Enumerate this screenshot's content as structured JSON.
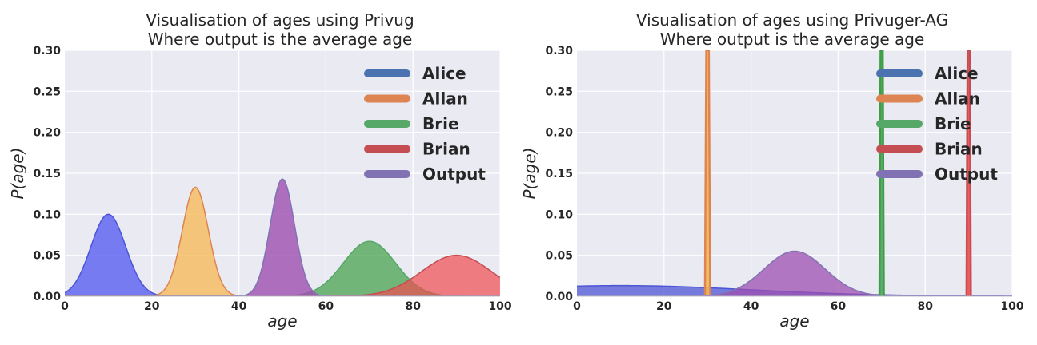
{
  "chart_data": [
    {
      "type": "area",
      "title_lines": [
        "Visualisation of ages using Privug",
        "Where output is the average age"
      ],
      "xlabel": "age",
      "ylabel_parts": [
        "P(",
        "age",
        ")"
      ],
      "xlim": [
        0,
        100
      ],
      "ylim": [
        0,
        0.3
      ],
      "xticks": [
        0,
        20,
        40,
        60,
        80,
        100
      ],
      "yticks": [
        "0.00",
        "0.05",
        "0.10",
        "0.15",
        "0.20",
        "0.25",
        "0.30"
      ],
      "grid": true,
      "legend_placement": "top-right",
      "legend": [
        {
          "label": "Alice",
          "color": "#4c72b0"
        },
        {
          "label": "Allan",
          "color": "#dd8452"
        },
        {
          "label": "Brie",
          "color": "#55a868"
        },
        {
          "label": "Brian",
          "color": "#c44e52"
        },
        {
          "label": "Output",
          "color": "#8172b3"
        }
      ],
      "series": [
        {
          "kind": "gauss",
          "mu": 10,
          "sigma": 4,
          "peak": 0.1,
          "fill": "#5a5ff0",
          "stroke": "#4c55d6",
          "opacity": 0.8
        },
        {
          "kind": "gauss",
          "mu": 30,
          "sigma": 3,
          "peak": 0.133,
          "fill": "#f5b750",
          "stroke": "#dd8452",
          "opacity": 0.75
        },
        {
          "kind": "gauss",
          "mu": 70,
          "sigma": 6,
          "peak": 0.067,
          "fill": "#3e9e45",
          "stroke": "#55a868",
          "opacity": 0.7
        },
        {
          "kind": "gauss",
          "mu": 90,
          "sigma": 8,
          "peak": 0.05,
          "fill": "#f04c50",
          "stroke": "#c44e52",
          "opacity": 0.7
        },
        {
          "kind": "gauss",
          "mu": 50,
          "sigma": 2.8,
          "peak": 0.143,
          "fill": "#9e4fb0",
          "stroke": "#8172b3",
          "opacity": 0.8
        }
      ]
    },
    {
      "type": "area",
      "title_lines": [
        "Visualisation of ages using Privuger-AG",
        "Where output is the average age"
      ],
      "xlabel": "age",
      "ylabel_parts": [
        "P(",
        "age",
        ")"
      ],
      "xlim": [
        0,
        100
      ],
      "ylim": [
        0,
        0.3
      ],
      "xticks": [
        0,
        20,
        40,
        60,
        80,
        100
      ],
      "yticks": [
        "0.00",
        "0.05",
        "0.10",
        "0.15",
        "0.20",
        "0.25",
        "0.30"
      ],
      "grid": true,
      "legend_placement": "top-right",
      "legend": [
        {
          "label": "Alice",
          "color": "#4c72b0"
        },
        {
          "label": "Allan",
          "color": "#dd8452"
        },
        {
          "label": "Brie",
          "color": "#55a868"
        },
        {
          "label": "Brian",
          "color": "#c44e52"
        },
        {
          "label": "Output",
          "color": "#8172b3"
        }
      ],
      "series": [
        {
          "kind": "gauss",
          "mu": 10,
          "sigma": 30,
          "peak": 0.013,
          "fill": "#4c55d6",
          "stroke": "#4c55d6",
          "opacity": 0.75
        },
        {
          "kind": "spike",
          "x": 30,
          "peak": 0.3,
          "width": 0.6,
          "fill": "#f5b750",
          "stroke": "#dd8452",
          "opacity": 0.9
        },
        {
          "kind": "gauss",
          "mu": 50,
          "sigma": 7,
          "peak": 0.055,
          "fill": "#9e4fb0",
          "stroke": "#8172b3",
          "opacity": 0.75
        },
        {
          "kind": "spike",
          "x": 70,
          "peak": 0.3,
          "width": 0.5,
          "fill": "#55a868",
          "stroke": "#3e9e45",
          "opacity": 0.95
        },
        {
          "kind": "spike",
          "x": 90,
          "peak": 0.3,
          "width": 0.5,
          "fill": "#f04c50",
          "stroke": "#c44e52",
          "opacity": 0.9
        }
      ]
    }
  ]
}
